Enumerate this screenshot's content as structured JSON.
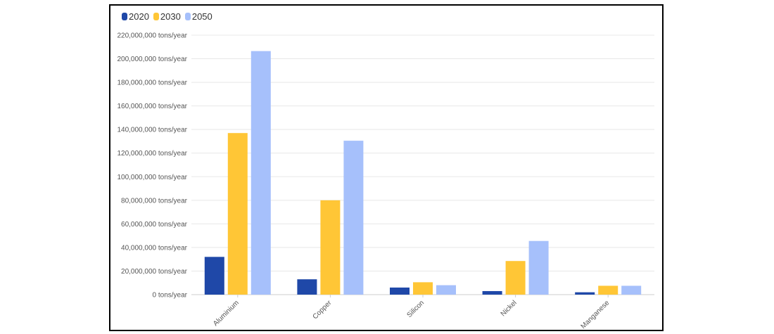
{
  "chart_data": {
    "type": "bar",
    "title": "",
    "xlabel": "",
    "ylabel": "",
    "categories": [
      "Aluminium",
      "Copper",
      "Silicon",
      "Nickel",
      "Manganese"
    ],
    "series": [
      {
        "name": "2020",
        "color": "#1f48a8",
        "values": [
          32000000,
          13000000,
          6000000,
          3000000,
          2000000
        ]
      },
      {
        "name": "2030",
        "color": "#ffc636",
        "values": [
          137000000,
          80000000,
          10500000,
          28500000,
          7500000
        ]
      },
      {
        "name": "2050",
        "color": "#a6c0fb",
        "values": [
          206500000,
          130500000,
          8000000,
          45500000,
          7500000
        ]
      }
    ],
    "ylim": [
      0,
      220000000
    ],
    "y_ticks": [
      "0 tons/year",
      "20,000,000 tons/year",
      "40,000,000 tons/year",
      "60,000,000 tons/year",
      "80,000,000 tons/year",
      "100,000,000 tons/year",
      "120,000,000 tons/year",
      "140,000,000 tons/year",
      "160,000,000 tons/year",
      "180,000,000 tons/year",
      "200,000,000 tons/year",
      "220,000,000 tons/year"
    ],
    "grid": true,
    "legend_position": "top-left"
  }
}
